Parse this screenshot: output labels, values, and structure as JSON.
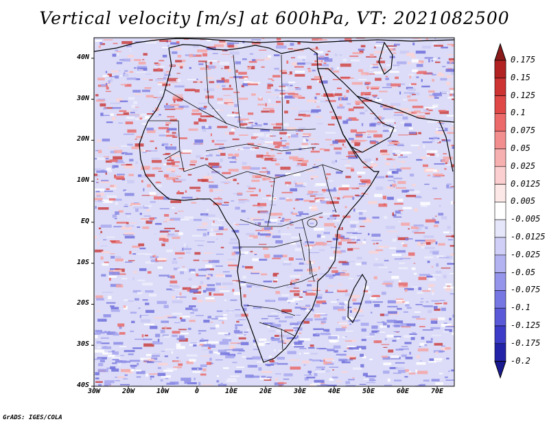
{
  "title": "Vertical velocity [m/s] at 600hPa, VT: 2021082500",
  "credit": "GrADS: IGES/COLA",
  "map": {
    "lon_range": [
      -30,
      75
    ],
    "lat_range": [
      -40,
      45
    ],
    "lat_ticks": [
      "40N",
      "30N",
      "20N",
      "10N",
      "EQ",
      "10S",
      "20S",
      "30S",
      "40S"
    ],
    "lon_ticks": [
      "30W",
      "20W",
      "10W",
      "0",
      "10E",
      "20E",
      "30E",
      "40E",
      "50E",
      "60E",
      "70E"
    ]
  },
  "colorbar": {
    "levels": [
      {
        "label": "0.175",
        "color": "#8b1a1a"
      },
      {
        "label": "0.15",
        "color": "#b22222"
      },
      {
        "label": "0.125",
        "color": "#cd3333"
      },
      {
        "label": "0.1",
        "color": "#e04848"
      },
      {
        "label": "0.075",
        "color": "#ec6a6a"
      },
      {
        "label": "0.05",
        "color": "#f28e8e"
      },
      {
        "label": "0.025",
        "color": "#f7b0b0"
      },
      {
        "label": "0.0125",
        "color": "#fbcfcf"
      },
      {
        "label": "0.005",
        "color": "#fde8e8"
      },
      {
        "label": "-0.005",
        "color": "#ffffff"
      },
      {
        "label": "-0.0125",
        "color": "#e6e6fa"
      },
      {
        "label": "-0.025",
        "color": "#cfcff7"
      },
      {
        "label": "-0.05",
        "color": "#b3b3f2"
      },
      {
        "label": "-0.075",
        "color": "#9595ec"
      },
      {
        "label": "-0.1",
        "color": "#7777e4"
      },
      {
        "label": "-0.125",
        "color": "#5a5ad9"
      },
      {
        "label": "-0.175",
        "color": "#3c3cc8"
      },
      {
        "label": "-0.2",
        "color": "#2323a8"
      }
    ],
    "bottom_color": "#1a1a90"
  }
}
